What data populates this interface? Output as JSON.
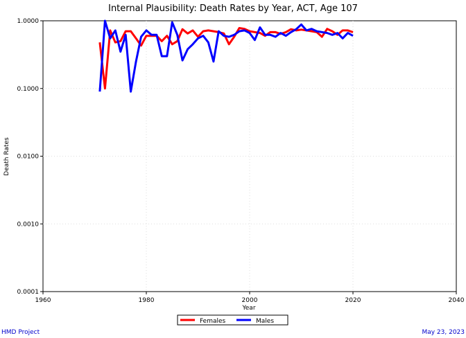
{
  "chart_data": {
    "type": "line",
    "title": "Internal Plausibility: Death Rates by Year, ACT, Age 107",
    "xlabel": "Year",
    "ylabel": "Death Rates",
    "xlim": [
      1960,
      2040
    ],
    "ylim": [
      0.0001,
      1.0
    ],
    "y_scale": "log",
    "x_ticks": [
      1960,
      1980,
      2000,
      2020,
      2040
    ],
    "x_tick_labels": [
      "1960",
      "1980",
      "2000",
      "2020",
      "2040"
    ],
    "y_ticks": [
      0.0001,
      0.001,
      0.01,
      0.1,
      1.0
    ],
    "y_tick_labels": [
      "0.0001",
      "0.0010",
      "0.0100",
      "0.1000",
      "1.0000"
    ],
    "grid": true,
    "legend_position": "bottom-center",
    "x": [
      1971,
      1972,
      1973,
      1974,
      1975,
      1976,
      1977,
      1978,
      1979,
      1980,
      1981,
      1982,
      1983,
      1984,
      1985,
      1986,
      1987,
      1988,
      1989,
      1990,
      1991,
      1992,
      1993,
      1994,
      1995,
      1996,
      1997,
      1998,
      1999,
      2000,
      2001,
      2002,
      2003,
      2004,
      2005,
      2006,
      2007,
      2008,
      2009,
      2010,
      2011,
      2012,
      2013,
      2014,
      2015,
      2016,
      2017,
      2018,
      2019,
      2020
    ],
    "series": [
      {
        "name": "Females",
        "color": "#ff0000",
        "values": [
          0.48,
          0.1,
          0.72,
          0.48,
          0.5,
          0.7,
          0.7,
          0.55,
          0.43,
          0.6,
          0.6,
          0.6,
          0.5,
          0.6,
          0.45,
          0.5,
          0.75,
          0.65,
          0.72,
          0.58,
          0.7,
          0.72,
          0.7,
          0.68,
          0.65,
          0.45,
          0.58,
          0.78,
          0.76,
          0.7,
          0.68,
          0.66,
          0.6,
          0.68,
          0.68,
          0.64,
          0.68,
          0.75,
          0.72,
          0.74,
          0.72,
          0.7,
          0.68,
          0.58,
          0.76,
          0.7,
          0.62,
          0.72,
          0.72,
          0.68
        ]
      },
      {
        "name": "Males",
        "color": "#0000ff",
        "values": [
          0.09,
          1.0,
          0.55,
          0.72,
          0.35,
          0.62,
          0.09,
          0.25,
          0.58,
          0.72,
          0.62,
          0.62,
          0.3,
          0.3,
          0.95,
          0.62,
          0.26,
          0.38,
          0.45,
          0.55,
          0.6,
          0.48,
          0.25,
          0.7,
          0.6,
          0.58,
          0.62,
          0.7,
          0.72,
          0.66,
          0.52,
          0.8,
          0.62,
          0.62,
          0.58,
          0.66,
          0.6,
          0.68,
          0.75,
          0.88,
          0.72,
          0.76,
          0.7,
          0.68,
          0.66,
          0.62,
          0.66,
          0.55,
          0.66,
          0.6
        ]
      }
    ]
  },
  "footer": {
    "left": "HMD Project",
    "right": "May 23, 2023"
  }
}
